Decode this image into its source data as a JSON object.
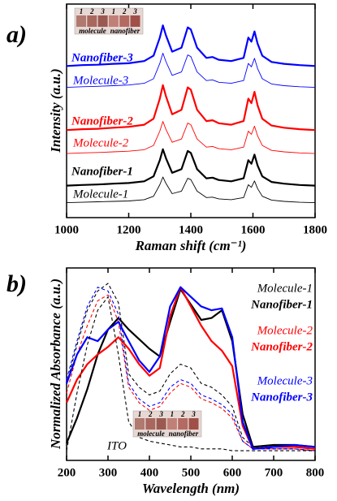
{
  "chart_data": [
    {
      "type": "line",
      "panel_label": "a)",
      "x_label": "Raman shift (cm⁻¹)",
      "y_label": "Intensity (a.u.)",
      "xlim": [
        1000,
        1800
      ],
      "xticks": [
        1000,
        1200,
        1400,
        1600,
        1800
      ],
      "ylim": [
        0,
        100
      ],
      "x": [
        1000,
        1050,
        1100,
        1150,
        1200,
        1250,
        1280,
        1300,
        1310,
        1320,
        1340,
        1370,
        1390,
        1400,
        1420,
        1450,
        1470,
        1490,
        1530,
        1570,
        1585,
        1595,
        1605,
        1615,
        1630,
        1660,
        1700,
        1750,
        1800
      ],
      "series": [
        {
          "name": "Molecule-1",
          "color": "#000000",
          "style": "thin",
          "values": [
            7,
            7.2,
            7.4,
            7.6,
            7.8,
            8.4,
            10,
            15.4,
            19,
            16,
            11.2,
            12.4,
            18.4,
            17.8,
            12.4,
            9.4,
            9.6,
            8.8,
            8.4,
            9.4,
            15.4,
            14.2,
            17.2,
            13.6,
            10,
            8.2,
            7.6,
            7.2,
            7
          ]
        },
        {
          "name": "Nanofiber-1",
          "color": "#000000",
          "style": "bold",
          "values": [
            15,
            15.3,
            15.5,
            15.9,
            16.2,
            17,
            19.3,
            26.9,
            32,
            27.8,
            21,
            22.7,
            31.2,
            30.3,
            22.7,
            18.4,
            18.7,
            17.6,
            17,
            18.4,
            26.9,
            25.2,
            29.5,
            24.4,
            19.3,
            16.7,
            15.9,
            15.3,
            15
          ]
        },
        {
          "name": "Molecule-2",
          "color": "#ff0000",
          "style": "thin",
          "values": [
            30,
            30.3,
            30.5,
            30.8,
            31.1,
            31.8,
            33.8,
            40.5,
            45,
            41.3,
            35.3,
            36.8,
            44.3,
            43.5,
            36.8,
            33,
            33.3,
            32.3,
            31.8,
            33,
            40.5,
            39,
            42.8,
            38.3,
            33.8,
            31.5,
            30.8,
            30.3,
            30
          ]
        },
        {
          "name": "Nanofiber-2",
          "color": "#ff0000",
          "style": "bold",
          "values": [
            41,
            41.4,
            41.6,
            42.1,
            42.5,
            43.5,
            46.3,
            55.7,
            62,
            56.8,
            48.4,
            50.5,
            61,
            59.9,
            50.5,
            45.2,
            45.6,
            44.2,
            43.5,
            45.2,
            55.7,
            53.6,
            58.9,
            52.6,
            46.3,
            43.1,
            42.1,
            41.4,
            41
          ]
        },
        {
          "name": "Molecule-3",
          "color": "#0000ff",
          "style": "thin",
          "values": [
            61,
            61.3,
            61.5,
            61.8,
            62.1,
            62.9,
            65,
            72.2,
            77,
            73,
            66.6,
            68.2,
            76.2,
            75.4,
            68.2,
            64.2,
            64.5,
            63.4,
            62.9,
            64.2,
            72.2,
            70.6,
            74.6,
            69.8,
            65,
            62.6,
            61.8,
            61.3,
            61
          ]
        },
        {
          "name": "Nanofiber-3",
          "color": "#0000ff",
          "style": "bold",
          "values": [
            71,
            71.4,
            71.6,
            72,
            72.3,
            73.3,
            75.8,
            84.3,
            90,
            85.3,
            77.7,
            79.6,
            89.1,
            88.1,
            79.6,
            74.8,
            75.2,
            73.9,
            73.3,
            74.8,
            84.3,
            82.4,
            87.2,
            81.5,
            75.8,
            72.9,
            72,
            71.4,
            71
          ]
        }
      ],
      "inset": {
        "numbers": [
          "1",
          "2",
          "3",
          "1",
          "2",
          "3"
        ],
        "labels": [
          "molecule",
          "nanofiber"
        ]
      }
    },
    {
      "type": "line",
      "panel_label": "b)",
      "x_label": "Wavelength (nm)",
      "y_label": "Normalized Absorbance (a.u.)",
      "xlim": [
        200,
        800
      ],
      "xticks": [
        200,
        300,
        400,
        500,
        600,
        700,
        800
      ],
      "ylim": [
        0,
        100
      ],
      "x": [
        200,
        225,
        250,
        275,
        300,
        325,
        350,
        375,
        400,
        425,
        450,
        475,
        500,
        525,
        550,
        575,
        600,
        625,
        650,
        700,
        750,
        800
      ],
      "series": [
        {
          "name": "Molecule-1",
          "color": "#000000",
          "style": "dashed",
          "values": [
            40,
            60,
            78,
            88,
            92,
            82,
            45,
            38,
            34,
            36,
            45,
            50,
            48,
            40,
            38,
            34,
            28,
            12,
            7,
            6,
            6,
            5
          ]
        },
        {
          "name": "Nanofiber-1",
          "color": "#000000",
          "style": "bold",
          "values": [
            9,
            22,
            37,
            55,
            68,
            74,
            68,
            63,
            58,
            54,
            72,
            89,
            81,
            73,
            74,
            78,
            62,
            24,
            7,
            8,
            8,
            7
          ]
        },
        {
          "name": "Molecule-2",
          "color": "#ff0000",
          "style": "dashed",
          "values": [
            35,
            55,
            70,
            83,
            86,
            72,
            38,
            30,
            26,
            28,
            35,
            40,
            38,
            32,
            30,
            27,
            22,
            10,
            6,
            6,
            6,
            5
          ]
        },
        {
          "name": "Nanofiber-2",
          "color": "#ff0000",
          "style": "bold",
          "values": [
            30,
            42,
            50,
            55,
            59,
            64,
            58,
            50,
            44,
            48,
            75,
            90,
            80,
            70,
            62,
            57,
            49,
            18,
            6,
            7,
            7,
            6
          ]
        },
        {
          "name": "Molecule-3",
          "color": "#0000ff",
          "style": "dashed",
          "values": [
            42,
            62,
            80,
            90,
            88,
            76,
            40,
            32,
            28,
            30,
            38,
            42,
            40,
            34,
            32,
            29,
            24,
            10,
            6,
            6,
            6,
            5
          ]
        },
        {
          "name": "Nanofiber-3",
          "color": "#0000ff",
          "style": "bold",
          "values": [
            40,
            55,
            64,
            62,
            68,
            72,
            62,
            52,
            46,
            54,
            80,
            90,
            85,
            80,
            78,
            79,
            64,
            20,
            6,
            7,
            8,
            7
          ]
        },
        {
          "name": "ITO",
          "color": "#000000",
          "style": "dashed",
          "values": [
            5,
            35,
            60,
            78,
            85,
            55,
            20,
            12,
            10,
            9,
            8,
            7,
            7,
            6,
            6,
            6,
            5,
            5,
            5,
            5,
            5,
            5
          ]
        }
      ],
      "inset": {
        "numbers": [
          "1",
          "2",
          "3",
          "1",
          "2",
          "3"
        ],
        "labels": [
          "molecule",
          "nanofiber"
        ]
      }
    }
  ]
}
